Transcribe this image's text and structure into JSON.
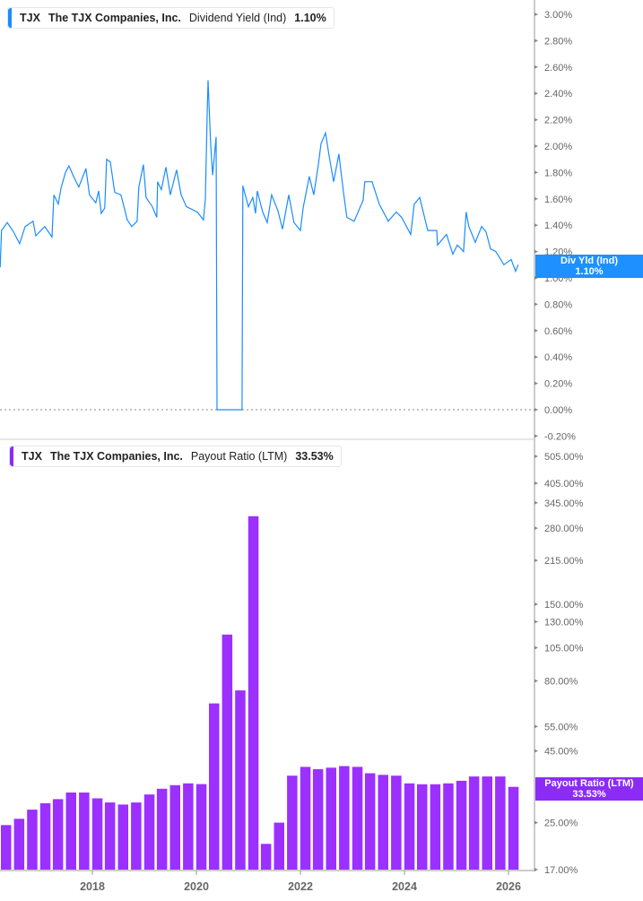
{
  "chart_data": [
    {
      "type": "line",
      "legend": {
        "ticker": "TJX",
        "company": "The TJX Companies, Inc.",
        "metric": "Dividend Yield (Ind)",
        "value": "1.10%"
      },
      "flag": {
        "label": "Div Yld (Ind)",
        "value": "1.10%"
      },
      "color": "#1a8cff",
      "ylim": [
        -0.2,
        3.0
      ],
      "xlim": [
        "2016-03-24",
        "2026-06-25"
      ],
      "y_ticks": [
        "3.00%",
        "2.80%",
        "2.60%",
        "2.40%",
        "2.20%",
        "2.00%",
        "1.80%",
        "1.60%",
        "1.40%",
        "1.20%",
        "1.00%",
        "0.80%",
        "0.60%",
        "0.40%",
        "0.20%",
        "0.00%",
        "-0.20%"
      ],
      "reference_line": 0,
      "series": [
        {
          "points": [
            [
              "2016-03-24",
              1.08
            ],
            [
              "2016-04-03",
              1.36
            ],
            [
              "2016-05-13",
              1.42
            ],
            [
              "2016-06-26",
              1.35
            ],
            [
              "2016-08-08",
              1.26
            ],
            [
              "2016-09-16",
              1.39
            ],
            [
              "2016-11-11",
              1.43
            ],
            [
              "2016-11-30",
              1.32
            ],
            [
              "2017-02-01",
              1.39
            ],
            [
              "2017-03-24",
              1.31
            ],
            [
              "2017-04-06",
              1.63
            ],
            [
              "2017-05-07",
              1.56
            ],
            [
              "2017-05-26",
              1.68
            ],
            [
              "2017-06-26",
              1.8
            ],
            [
              "2017-07-21",
              1.85
            ],
            [
              "2017-08-22",
              1.77
            ],
            [
              "2017-09-28",
              1.69
            ],
            [
              "2017-11-17",
              1.83
            ],
            [
              "2017-12-12",
              1.63
            ],
            [
              "2018-01-25",
              1.57
            ],
            [
              "2018-02-14",
              1.66
            ],
            [
              "2018-03-04",
              1.49
            ],
            [
              "2018-03-29",
              1.53
            ],
            [
              "2018-04-11",
              1.9
            ],
            [
              "2018-05-07",
              1.88
            ],
            [
              "2018-06-07",
              1.65
            ],
            [
              "2018-07-21",
              1.63
            ],
            [
              "2018-09-03",
              1.44
            ],
            [
              "2018-10-04",
              1.39
            ],
            [
              "2018-11-11",
              1.43
            ],
            [
              "2018-11-23",
              1.69
            ],
            [
              "2018-12-25",
              1.86
            ],
            [
              "2019-01-13",
              1.61
            ],
            [
              "2019-02-26",
              1.54
            ],
            [
              "2019-03-29",
              1.46
            ],
            [
              "2019-04-04",
              1.73
            ],
            [
              "2019-04-30",
              1.67
            ],
            [
              "2019-06-01",
              1.84
            ],
            [
              "2019-07-02",
              1.63
            ],
            [
              "2019-08-15",
              1.82
            ],
            [
              "2019-09-16",
              1.63
            ],
            [
              "2019-10-23",
              1.54
            ],
            [
              "2020-01-07",
              1.5
            ],
            [
              "2020-02-20",
              1.44
            ],
            [
              "2020-03-04",
              1.6
            ],
            [
              "2020-03-17",
              2.24
            ],
            [
              "2020-03-23",
              2.5
            ],
            [
              "2020-04-11",
              2.0
            ],
            [
              "2020-04-24",
              1.78
            ],
            [
              "2020-05-19",
              2.07
            ],
            [
              "2020-05-25",
              0.0
            ],
            [
              "2020-11-17",
              0.0
            ],
            [
              "2020-11-23",
              1.7
            ],
            [
              "2021-01-01",
              1.54
            ],
            [
              "2021-02-01",
              1.61
            ],
            [
              "2021-02-20",
              1.49
            ],
            [
              "2021-03-04",
              1.66
            ],
            [
              "2021-04-11",
              1.5
            ],
            [
              "2021-05-13",
              1.42
            ],
            [
              "2021-06-13",
              1.63
            ],
            [
              "2021-07-27",
              1.51
            ],
            [
              "2021-08-28",
              1.37
            ],
            [
              "2021-10-11",
              1.63
            ],
            [
              "2021-11-17",
              1.42
            ],
            [
              "2022-01-01",
              1.36
            ],
            [
              "2022-01-20",
              1.53
            ],
            [
              "2022-03-04",
              1.77
            ],
            [
              "2022-04-05",
              1.63
            ],
            [
              "2022-05-07",
              1.86
            ],
            [
              "2022-05-26",
              2.02
            ],
            [
              "2022-06-26",
              2.1
            ],
            [
              "2022-07-21",
              1.93
            ],
            [
              "2022-08-22",
              1.73
            ],
            [
              "2022-09-28",
              1.94
            ],
            [
              "2022-10-29",
              1.66
            ],
            [
              "2022-11-23",
              1.46
            ],
            [
              "2023-01-13",
              1.43
            ],
            [
              "2023-03-17",
              1.59
            ],
            [
              "2023-03-29",
              1.73
            ],
            [
              "2023-05-19",
              1.73
            ],
            [
              "2023-07-08",
              1.56
            ],
            [
              "2023-09-09",
              1.43
            ],
            [
              "2023-11-04",
              1.5
            ],
            [
              "2023-12-12",
              1.46
            ],
            [
              "2024-02-14",
              1.33
            ],
            [
              "2024-03-10",
              1.56
            ],
            [
              "2024-04-17",
              1.61
            ],
            [
              "2024-06-13",
              1.36
            ],
            [
              "2024-08-15",
              1.36
            ],
            [
              "2024-08-21",
              1.25
            ],
            [
              "2024-10-23",
              1.33
            ],
            [
              "2024-12-06",
              1.18
            ],
            [
              "2025-01-07",
              1.25
            ],
            [
              "2025-02-20",
              1.2
            ],
            [
              "2025-03-10",
              1.5
            ],
            [
              "2025-03-29",
              1.39
            ],
            [
              "2025-05-13",
              1.27
            ],
            [
              "2025-06-26",
              1.39
            ],
            [
              "2025-07-27",
              1.35
            ],
            [
              "2025-08-28",
              1.22
            ],
            [
              "2025-10-04",
              1.2
            ],
            [
              "2025-11-30",
              1.1
            ],
            [
              "2026-01-20",
              1.14
            ],
            [
              "2026-02-20",
              1.05
            ],
            [
              "2026-03-10",
              1.1
            ]
          ]
        }
      ]
    },
    {
      "type": "bar",
      "legend": {
        "ticker": "TJX",
        "company": "The TJX Companies, Inc.",
        "metric": "Payout Ratio (LTM)",
        "value": "33.53%"
      },
      "flag": {
        "label": "Payout Ratio (LTM)",
        "value": "33.53%"
      },
      "color": "#9b30ff",
      "y_scale": "log",
      "ylim": [
        17,
        505
      ],
      "y_ticks": [
        505,
        405,
        345,
        280,
        215,
        150,
        130,
        105,
        80,
        55,
        45,
        25,
        17
      ],
      "y_tick_labels": [
        "505.00%",
        "405.00%",
        "345.00%",
        "280.00%",
        "215.00%",
        "150.00%",
        "130.00%",
        "105.00%",
        "80.00%",
        "55.00%",
        "45.00%",
        "25.00%",
        "17.00%"
      ],
      "x_ticks": [
        "2018",
        "2020",
        "2022",
        "2024",
        "2026"
      ],
      "categories": [
        "2016-04-30",
        "2016-07-31",
        "2016-10-31",
        "2017-01-31",
        "2017-04-30",
        "2017-07-31",
        "2017-10-31",
        "2018-01-31",
        "2018-04-30",
        "2018-07-31",
        "2018-10-31",
        "2019-01-31",
        "2019-04-30",
        "2019-07-31",
        "2019-10-31",
        "2020-01-31",
        "2020-04-30",
        "2020-07-31",
        "2020-10-31",
        "2021-01-31",
        "2021-04-30",
        "2021-07-31",
        "2021-10-31",
        "2022-01-31",
        "2022-04-30",
        "2022-07-31",
        "2022-10-31",
        "2023-01-31",
        "2023-04-30",
        "2023-07-31",
        "2023-10-31",
        "2024-01-31",
        "2024-04-30",
        "2024-07-31",
        "2024-10-31",
        "2025-01-31",
        "2025-04-30",
        "2025-07-31",
        "2025-10-31",
        "2026-01-31"
      ],
      "values": [
        24.5,
        25.8,
        27.8,
        29.3,
        30.3,
        32.0,
        32.0,
        30.5,
        29.5,
        29.0,
        29.5,
        31.5,
        33.0,
        34.0,
        34.5,
        34.3,
        66.5,
        117,
        74,
        309,
        21,
        25,
        36.75,
        39.5,
        38.75,
        39.25,
        39.75,
        39.5,
        37.5,
        37,
        36.75,
        34.5,
        34.25,
        34.25,
        34.5,
        35.25,
        36.5,
        36.5,
        36.5,
        33.53
      ]
    }
  ]
}
